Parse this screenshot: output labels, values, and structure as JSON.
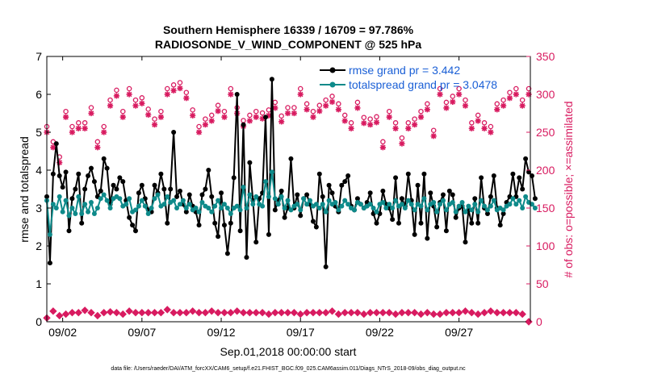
{
  "chart_data": {
    "type": "line",
    "title": "Southern Hemisphere 16339 / 16709 = 97.786%",
    "subtitle": "RADIOSONDE_V_WIND_COMPONENT @ 525 hPa",
    "xlabel": "Sep.01,2018 00:00:00 start",
    "ylabel": "rmse and totalspread",
    "y2label": "# of obs: o=possible; ×=assimilated",
    "footnote": "data file: /Users/raeder/DAI/ATM_forcXX/CAM6_setup/f.e21.FHIST_BGC.f09_025.CAM6assim.011/Diags_NTrS_2018-09/obs_diag_output.nc",
    "x_range": [
      1.0,
      31.5
    ],
    "ylim": [
      0,
      7
    ],
    "y2lim": [
      0,
      350
    ],
    "xticks": [
      {
        "day": 2,
        "label": "09/02"
      },
      {
        "day": 7,
        "label": "09/07"
      },
      {
        "day": 12,
        "label": "09/12"
      },
      {
        "day": 17,
        "label": "09/17"
      },
      {
        "day": 22,
        "label": "09/22"
      },
      {
        "day": 27,
        "label": "09/27"
      }
    ],
    "yticks": [
      "0",
      "1",
      "2",
      "3",
      "4",
      "5",
      "6",
      "7"
    ],
    "y2ticks": [
      "0",
      "50",
      "100",
      "150",
      "200",
      "250",
      "300",
      "350"
    ],
    "colors": {
      "rmse": "#000000",
      "spread": "#0e8a8a",
      "obs": "#d81b60",
      "legend_text": "#1a5fd6"
    },
    "legend": [
      {
        "name": "rmse grand pr = 3.442"
      },
      {
        "name": "totalspread grand pr = 3.0478"
      }
    ],
    "series": [
      {
        "name": "rmse",
        "values": [
          3.3,
          1.55,
          3.9,
          4.7,
          3.85,
          3.55,
          3.95,
          2.4,
          3.25,
          3.5,
          3.9,
          2.6,
          3.5,
          3.85,
          4.05,
          3.7,
          3.3,
          3.45,
          4.3,
          4.05,
          3.1,
          3.6,
          3.5,
          3.8,
          3.7,
          3.2,
          2.75,
          2.55,
          2.4,
          3.4,
          3.6,
          3.25,
          2.95,
          2.9,
          3.6,
          3.4,
          3.9,
          3.5,
          2.6,
          3.5,
          5.0,
          3.3,
          3.45,
          3.1,
          2.9,
          3.35,
          3.05,
          2.9,
          2.55,
          3.35,
          3.5,
          4.0,
          3.3,
          2.6,
          2.25,
          3.4,
          2.55,
          1.8,
          2.6,
          3.8,
          6.0,
          2.4,
          5.2,
          1.7,
          4.2,
          3.2,
          2.1,
          3.25,
          3.4,
          5.4,
          2.3,
          6.4,
          2.95,
          3.2,
          3.45,
          2.75,
          3.0,
          4.3,
          3.0,
          3.35,
          2.8,
          3.25,
          3.35,
          3.1,
          2.65,
          2.5,
          3.9,
          3.3,
          1.45,
          3.6,
          3.4,
          3.05,
          2.9,
          3.6,
          3.7,
          3.85,
          3.05,
          2.95,
          3.25,
          3.1,
          3.0,
          3.15,
          3.4,
          2.85,
          2.6,
          2.85,
          3.45,
          3.1,
          3.0,
          2.7,
          3.8,
          2.6,
          3.25,
          3.05,
          3.9,
          3.2,
          2.3,
          3.6,
          2.6,
          3.9,
          2.2,
          3.4,
          3.05,
          2.5,
          3.15,
          3.35,
          2.4,
          3.45,
          3.35,
          2.75,
          3.0,
          3.05,
          2.1,
          2.95,
          2.6,
          3.25,
          2.6,
          3.8,
          3.0,
          2.85,
          3.3,
          3.85,
          3.0,
          2.55,
          2.85,
          3.15,
          3.3,
          3.9,
          3.3,
          3.8,
          3.5,
          4.3,
          3.95,
          3.85,
          3.25
        ]
      },
      {
        "name": "totalspread",
        "values": [
          3.2,
          2.3,
          3.1,
          3.0,
          3.3,
          2.9,
          3.2,
          2.8,
          3.0,
          2.85,
          3.3,
          2.85,
          3.1,
          2.9,
          3.15,
          2.85,
          3.0,
          3.25,
          3.35,
          3.2,
          3.0,
          3.25,
          3.3,
          3.25,
          3.05,
          3.1,
          3.25,
          2.9,
          2.95,
          3.05,
          3.2,
          3.05,
          2.85,
          3.0,
          3.25,
          3.35,
          3.05,
          3.1,
          3.3,
          3.15,
          3.2,
          3.0,
          3.1,
          3.2,
          3.0,
          3.1,
          2.95,
          3.0,
          2.9,
          3.15,
          3.05,
          3.0,
          2.9,
          3.05,
          3.2,
          3.0,
          3.1,
          3.0,
          2.85,
          3.0,
          3.05,
          2.95,
          3.55,
          3.0,
          3.35,
          3.1,
          3.3,
          3.1,
          3.05,
          3.7,
          3.3,
          3.95,
          3.25,
          3.1,
          3.3,
          3.0,
          3.2,
          2.95,
          3.05,
          3.1,
          2.95,
          3.25,
          3.1,
          3.2,
          3.05,
          3.1,
          3.0,
          3.1,
          2.9,
          3.2,
          3.1,
          3.15,
          2.95,
          3.05,
          3.2,
          3.1,
          3.0,
          2.95,
          3.15,
          3.1,
          3.0,
          3.05,
          3.1,
          3.0,
          2.9,
          3.1,
          3.15,
          3.0,
          3.1,
          3.0,
          3.2,
          3.05,
          3.1,
          3.0,
          3.2,
          3.1,
          2.95,
          3.1,
          3.05,
          3.25,
          2.95,
          3.1,
          3.15,
          2.9,
          3.1,
          3.2,
          2.95,
          3.1,
          3.15,
          2.9,
          3.05,
          3.15,
          2.9,
          3.05,
          2.95,
          3.1,
          2.9,
          3.2,
          3.05,
          2.95,
          3.05,
          3.2,
          2.95,
          3.0,
          2.95,
          3.05,
          3.1,
          3.25,
          3.1,
          3.2,
          3.0,
          3.3,
          3.15,
          3.1,
          3.0
        ]
      },
      {
        "name": "obs_possible_high",
        "values": [
          250,
          278,
          230,
          220,
          210,
          257,
          270,
          272,
          250,
          245,
          255,
          260,
          255,
          258,
          275,
          250,
          230,
          265,
          250,
          265,
          285,
          295,
          298,
          290,
          270,
          280,
          300,
          298,
          285,
          278,
          288,
          265,
          273,
          280,
          260,
          255,
          270,
          285,
          300,
          302,
          305,
          290,
          308,
          280,
          295,
          270,
          272,
          262,
          250,
          278,
          260,
          290,
          265,
          275,
          278,
          292,
          270,
          315,
          300,
          280,
          275,
          250,
          258,
          268,
          265,
          275,
          270,
          280,
          268,
          260,
          272,
          278,
          282,
          258,
          264,
          248,
          275,
          260,
          275,
          262,
          300,
          250,
          280,
          270,
          270,
          265,
          278,
          272,
          285,
          305,
          290,
          300,
          280,
          298,
          265,
          260,
          255,
          278,
          282,
          270,
          262,
          250,
          260,
          265,
          263,
          262,
          230,
          258,
          270,
          260,
          255,
          240,
          235,
          245,
          255,
          270,
          260,
          270,
          270,
          275,
          280,
          268,
          245,
          270,
          300,
          295,
          282,
          285,
          290,
          295,
          300,
          290,
          285,
          295,
          255,
          275,
          265,
          250,
          255,
          270,
          250,
          260,
          280,
          300,
          285,
          265,
          295,
          290,
          300,
          290,
          285,
          295,
          300
        ]
      },
      {
        "name": "obs_low",
        "values": [
          5,
          10,
          14,
          10,
          8,
          9,
          10,
          12,
          12,
          10,
          12,
          15,
          15,
          14,
          12,
          10,
          8,
          8,
          12,
          14,
          13,
          12,
          12,
          10,
          10,
          12,
          14,
          12,
          12,
          13,
          12,
          13,
          12,
          10,
          12,
          12,
          12,
          14,
          16,
          14,
          12,
          12,
          12,
          10,
          12,
          14,
          14,
          12,
          12,
          10,
          12,
          14,
          14,
          14,
          12,
          12,
          12,
          13,
          12,
          12,
          14,
          14,
          12,
          12,
          12,
          12,
          12,
          12,
          12,
          10,
          10,
          12,
          12,
          10,
          12,
          10,
          12,
          14,
          12,
          12,
          10,
          12,
          12,
          10,
          12,
          10,
          12,
          10,
          12,
          12,
          14,
          12,
          10,
          12,
          12,
          14,
          12,
          10,
          12,
          12,
          10,
          12,
          12,
          12,
          12,
          14,
          12,
          10,
          12,
          12,
          10,
          10,
          12,
          14,
          12,
          14,
          12,
          12,
          10,
          14,
          12,
          12,
          10,
          12,
          10,
          12,
          12,
          10,
          12,
          14,
          12,
          12,
          14,
          12,
          12,
          14,
          10,
          10,
          12,
          12,
          14,
          12,
          12,
          14,
          12,
          12,
          12,
          14,
          12,
          14,
          10,
          12,
          0
        ]
      }
    ]
  }
}
